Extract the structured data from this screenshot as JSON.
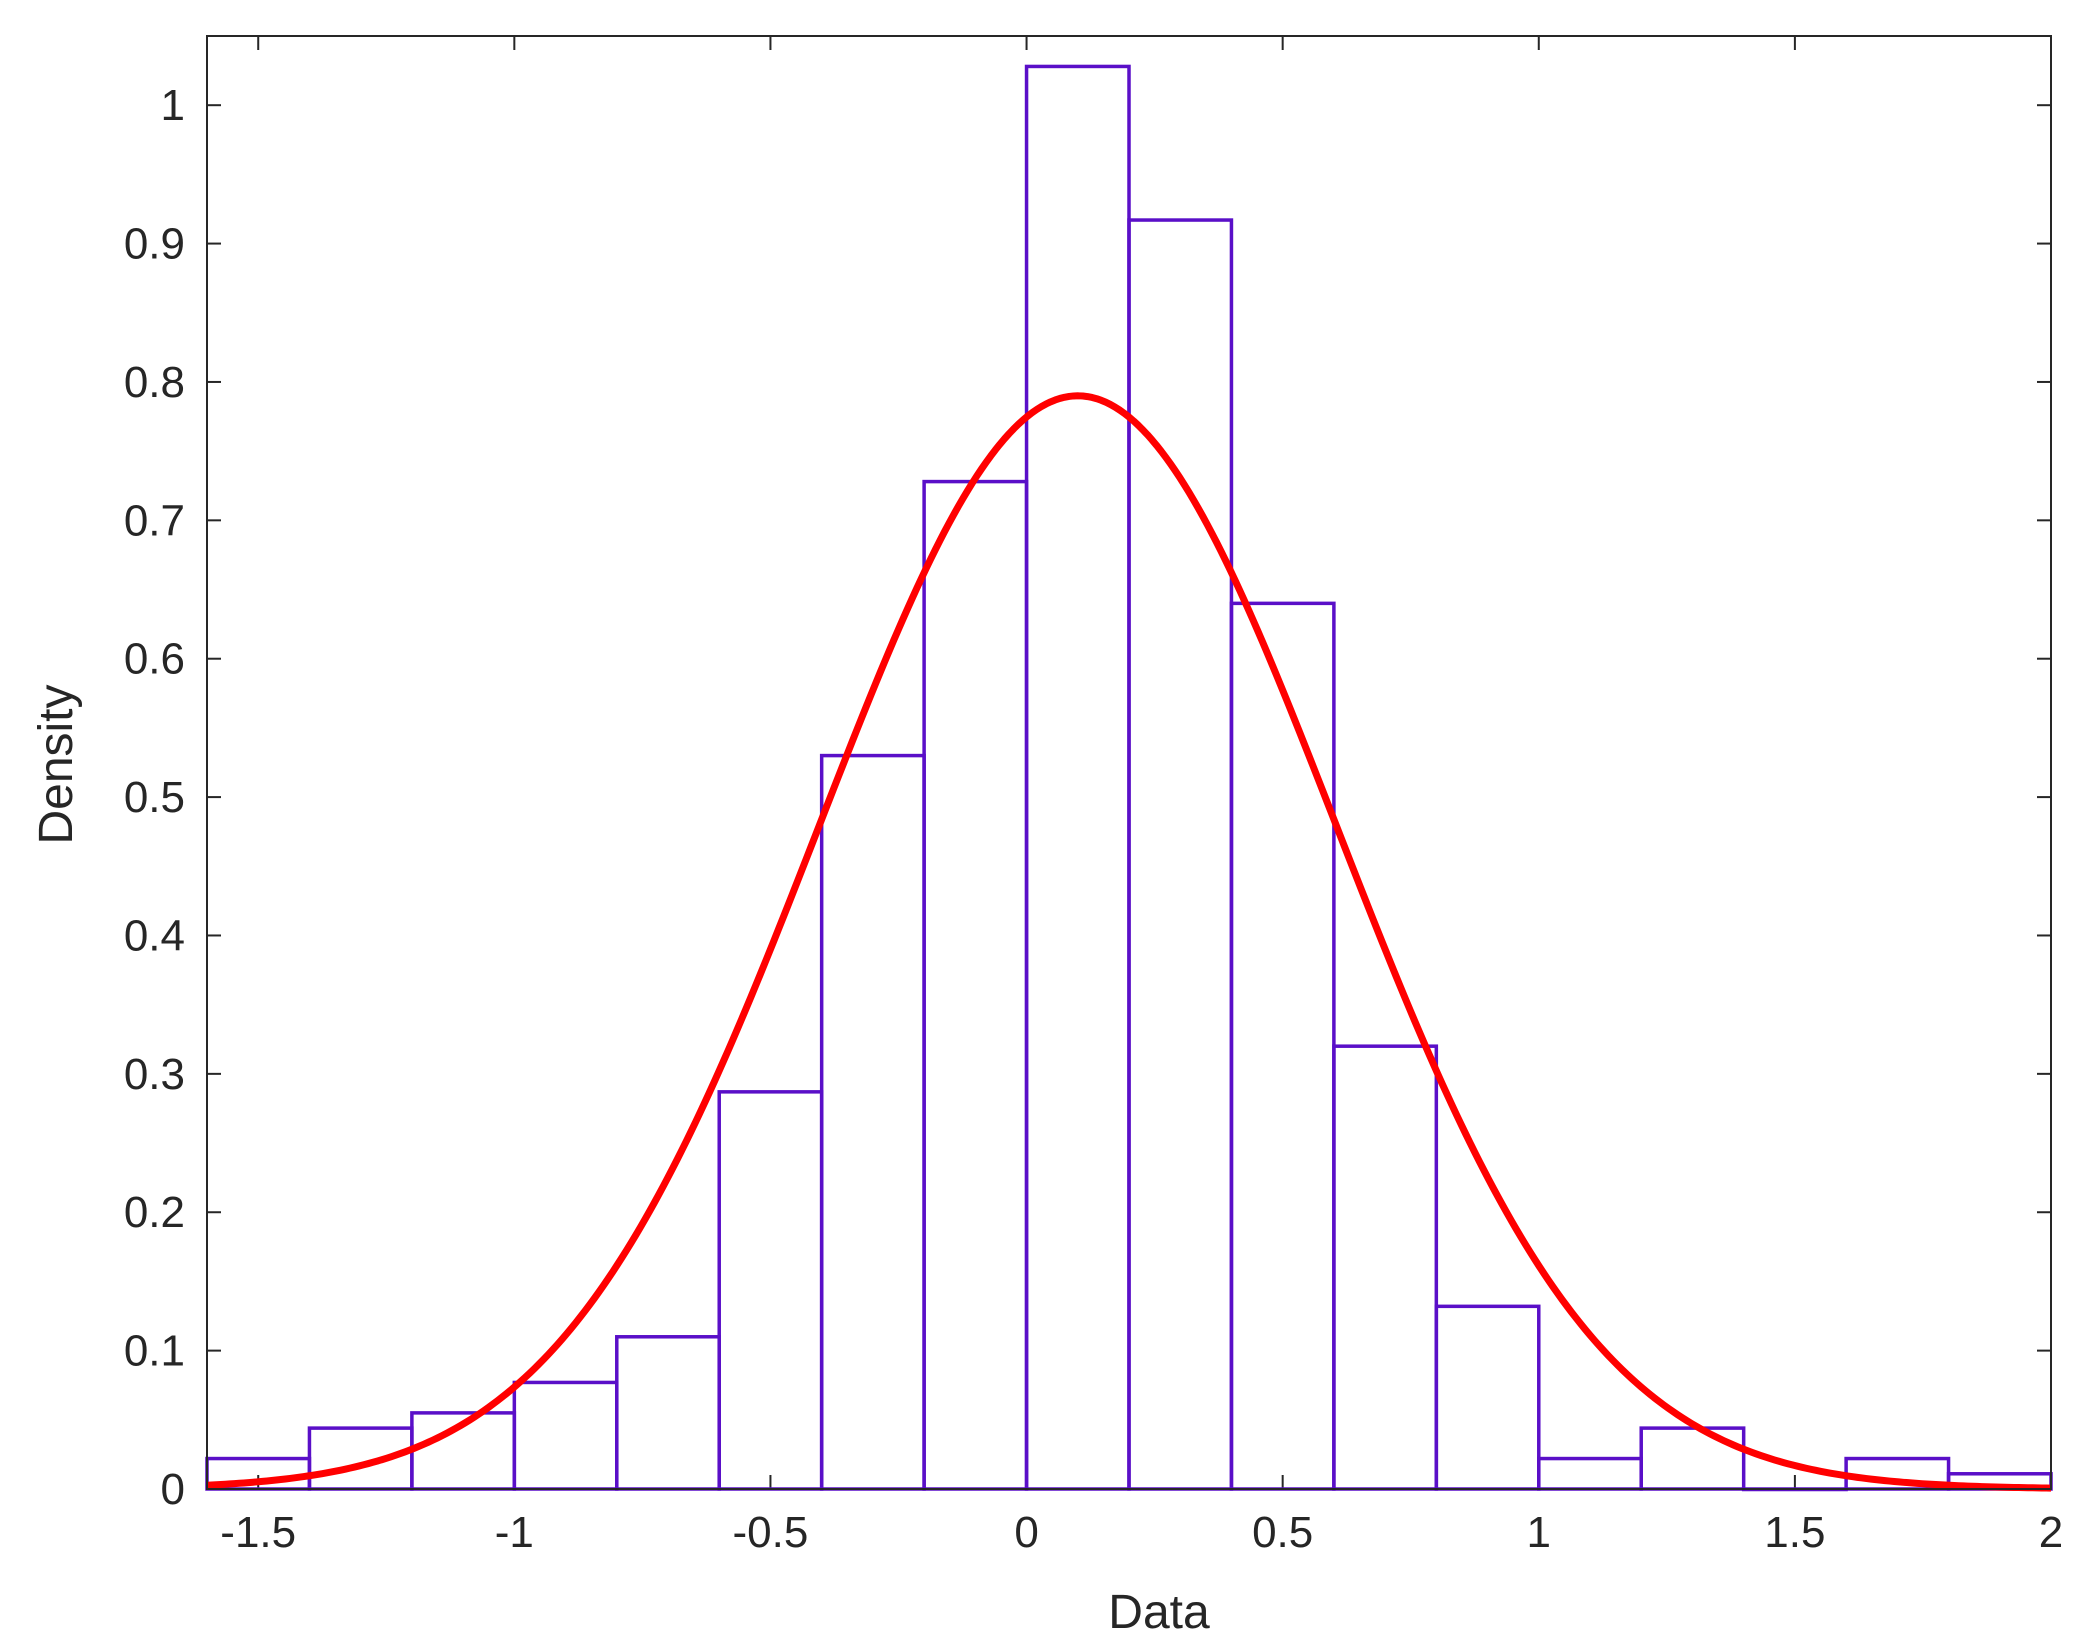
{
  "chart_data": {
    "type": "histogram",
    "title": "",
    "xlabel": "Data",
    "ylabel": "Density",
    "xlim": [
      -1.6,
      2.0
    ],
    "ylim": [
      0,
      1.05
    ],
    "xticks": [
      -1.5,
      -1,
      -0.5,
      0,
      0.5,
      1,
      1.5,
      2
    ],
    "xtick_labels": [
      "-1.5",
      "-1",
      "-0.5",
      "0",
      "0.5",
      "1",
      "1.5",
      "2"
    ],
    "yticks": [
      0,
      0.1,
      0.2,
      0.3,
      0.4,
      0.5,
      0.6,
      0.7,
      0.8,
      0.9,
      1
    ],
    "ytick_labels": [
      "0",
      "0.1",
      "0.2",
      "0.3",
      "0.4",
      "0.5",
      "0.6",
      "0.7",
      "0.8",
      "0.9",
      "1"
    ],
    "grid": false,
    "legend": "none",
    "histogram": {
      "bin_edges": [
        -1.6,
        -1.4,
        -1.2,
        -1.0,
        -0.8,
        -0.6,
        -0.4,
        -0.2,
        0.0,
        0.2,
        0.4,
        0.6,
        0.8,
        1.0,
        1.2,
        1.4,
        1.6,
        1.8,
        2.0
      ],
      "density": [
        0.022,
        0.044,
        0.055,
        0.077,
        0.11,
        0.287,
        0.53,
        0.728,
        1.028,
        0.917,
        0.64,
        0.32,
        0.132,
        0.022,
        0.044,
        0.0,
        0.022,
        0.011
      ],
      "color": "#5a0fc8"
    },
    "fit": {
      "type": "normal-pdf",
      "mean": 0.1,
      "sigma": 0.505,
      "color": "#ff0000"
    }
  }
}
